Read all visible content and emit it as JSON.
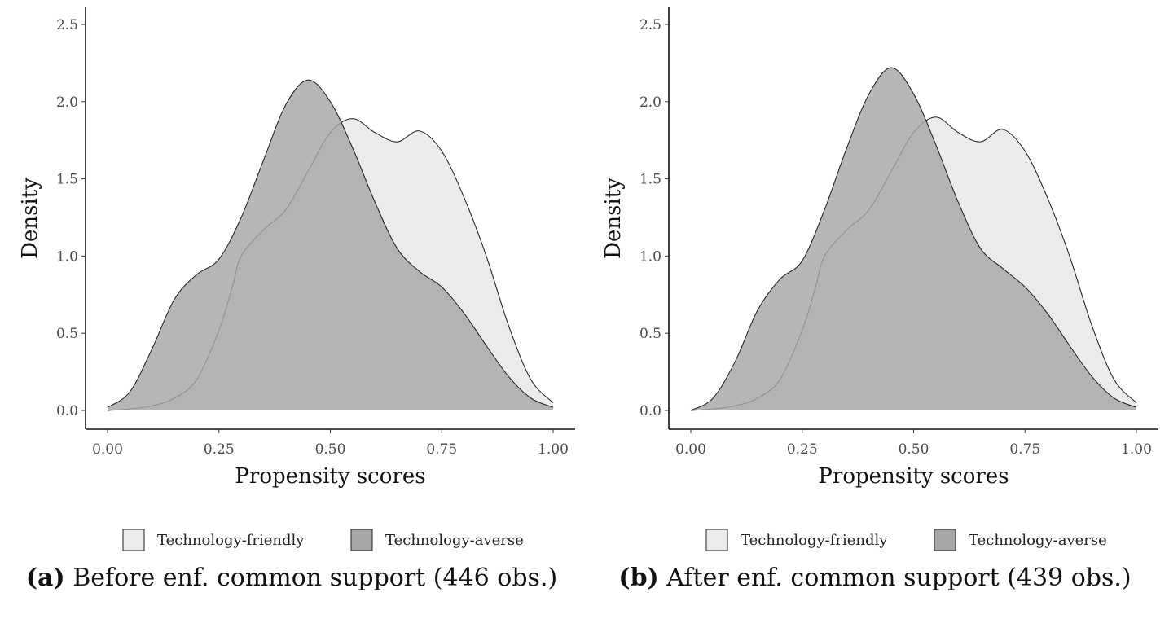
{
  "chart_data": [
    {
      "type": "area",
      "panel": "a",
      "xlabel": "Propensity scores",
      "ylabel": "Density",
      "xlim": [
        0,
        1
      ],
      "ylim": [
        0,
        2.5
      ],
      "xticks": [
        "0.00",
        "0.25",
        "0.50",
        "0.75",
        "1.00"
      ],
      "yticks": [
        "0.0",
        "0.5",
        "1.0",
        "1.5",
        "2.0",
        "2.5"
      ],
      "grid": false,
      "legend_position": "bottom",
      "caption_tag": "(a)",
      "caption_text": "Before enf. common support (446 obs.)",
      "series": [
        {
          "name": "Technology-friendly",
          "color": "#ebebeb",
          "x": [
            0.0,
            0.05,
            0.1,
            0.15,
            0.2,
            0.25,
            0.28,
            0.3,
            0.35,
            0.4,
            0.45,
            0.5,
            0.55,
            0.6,
            0.65,
            0.7,
            0.75,
            0.8,
            0.85,
            0.9,
            0.95,
            1.0
          ],
          "y": [
            0.0,
            0.01,
            0.03,
            0.08,
            0.2,
            0.52,
            0.8,
            1.0,
            1.17,
            1.3,
            1.55,
            1.8,
            1.89,
            1.8,
            1.74,
            1.81,
            1.68,
            1.38,
            1.0,
            0.55,
            0.2,
            0.05
          ]
        },
        {
          "name": "Technology-averse",
          "color": "#a6a6a6",
          "x": [
            0.0,
            0.05,
            0.1,
            0.15,
            0.2,
            0.25,
            0.3,
            0.35,
            0.4,
            0.45,
            0.5,
            0.55,
            0.6,
            0.65,
            0.7,
            0.75,
            0.8,
            0.85,
            0.9,
            0.95,
            1.0
          ],
          "y": [
            0.02,
            0.12,
            0.4,
            0.72,
            0.88,
            0.98,
            1.25,
            1.62,
            1.98,
            2.14,
            2.0,
            1.7,
            1.35,
            1.05,
            0.9,
            0.8,
            0.63,
            0.42,
            0.22,
            0.08,
            0.02
          ]
        }
      ]
    },
    {
      "type": "area",
      "panel": "b",
      "xlabel": "Propensity scores",
      "ylabel": "Density",
      "xlim": [
        0,
        1
      ],
      "ylim": [
        0,
        2.5
      ],
      "xticks": [
        "0.00",
        "0.25",
        "0.50",
        "0.75",
        "1.00"
      ],
      "yticks": [
        "0.0",
        "0.5",
        "1.0",
        "1.5",
        "2.0",
        "2.5"
      ],
      "grid": false,
      "legend_position": "bottom",
      "caption_tag": "(b)",
      "caption_text": "After enf. common support (439 obs.)",
      "series": [
        {
          "name": "Technology-friendly",
          "color": "#ebebeb",
          "x": [
            0.0,
            0.05,
            0.1,
            0.15,
            0.2,
            0.25,
            0.28,
            0.3,
            0.35,
            0.4,
            0.45,
            0.5,
            0.55,
            0.6,
            0.65,
            0.7,
            0.75,
            0.8,
            0.85,
            0.9,
            0.95,
            1.0
          ],
          "y": [
            0.0,
            0.01,
            0.03,
            0.08,
            0.2,
            0.52,
            0.8,
            1.0,
            1.17,
            1.3,
            1.55,
            1.8,
            1.9,
            1.8,
            1.74,
            1.82,
            1.68,
            1.38,
            1.0,
            0.55,
            0.2,
            0.05
          ]
        },
        {
          "name": "Technology-averse",
          "color": "#a6a6a6",
          "x": [
            0.0,
            0.05,
            0.1,
            0.15,
            0.2,
            0.25,
            0.3,
            0.35,
            0.4,
            0.45,
            0.5,
            0.55,
            0.6,
            0.65,
            0.7,
            0.75,
            0.8,
            0.85,
            0.9,
            0.95,
            1.0
          ],
          "y": [
            0.0,
            0.08,
            0.32,
            0.65,
            0.85,
            0.97,
            1.3,
            1.7,
            2.05,
            2.22,
            2.05,
            1.72,
            1.35,
            1.05,
            0.92,
            0.8,
            0.63,
            0.42,
            0.22,
            0.08,
            0.02
          ]
        }
      ]
    }
  ]
}
